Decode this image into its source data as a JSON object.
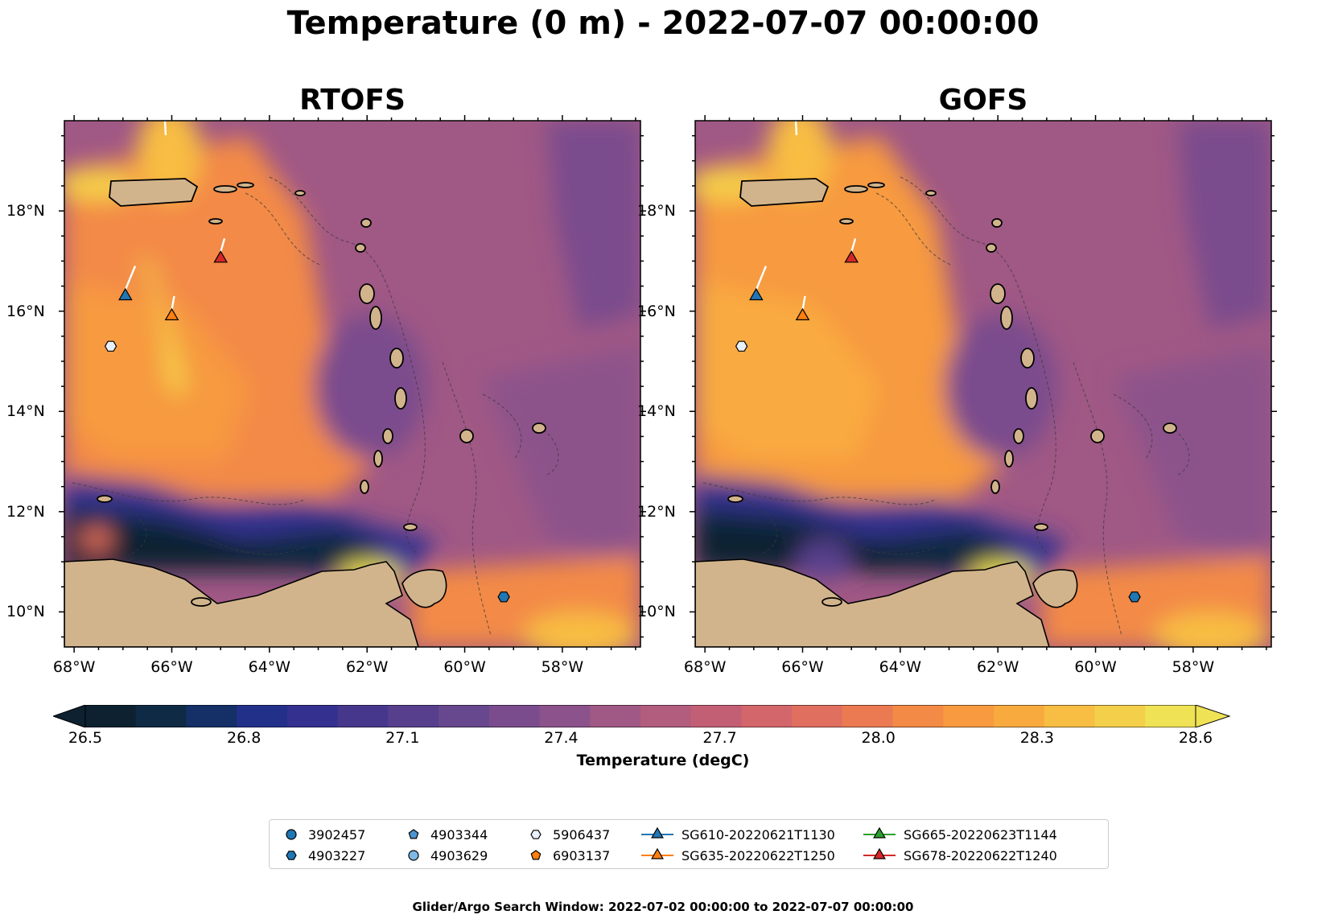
{
  "title": "Temperature (0 m) - 2022-07-07 00:00:00",
  "panels": [
    {
      "title": "RTOFS"
    },
    {
      "title": "GOFS"
    }
  ],
  "axes": {
    "lon_range": [
      -68.2,
      -56.4
    ],
    "lat_range": [
      9.3,
      19.8
    ],
    "lon_ticks": [
      -68,
      -66,
      -64,
      -62,
      -60,
      -58
    ],
    "lon_labels": [
      "68°W",
      "66°W",
      "64°W",
      "62°W",
      "60°W",
      "58°W"
    ],
    "lat_ticks": [
      10,
      12,
      14,
      16,
      18
    ],
    "lat_labels": [
      "10°N",
      "12°N",
      "14°N",
      "16°N",
      "18°N"
    ]
  },
  "colorbar": {
    "label": "Temperature (degC)",
    "vmin": 26.5,
    "vmax": 28.6,
    "ticks": [
      26.5,
      26.8,
      27.1,
      27.4,
      27.7,
      28.0,
      28.3,
      28.6
    ],
    "tick_labels": [
      "26.5",
      "26.8",
      "27.1",
      "27.4",
      "27.7",
      "28.0",
      "28.3",
      "28.6"
    ],
    "colors": [
      "#0d2130",
      "#0f2a45",
      "#152f67",
      "#23308a",
      "#34308f",
      "#46378c",
      "#573f8d",
      "#67478d",
      "#7a4c8d",
      "#8c528b",
      "#a05885",
      "#b25c7e",
      "#c35f75",
      "#d3666b",
      "#e16f5f",
      "#eb7a52",
      "#f38a46",
      "#f79a40",
      "#f9aa3f",
      "#f8bd43",
      "#f4cf4a",
      "#efe255"
    ],
    "extend": "both"
  },
  "land_color": "#d2b48c",
  "legend": {
    "items": [
      {
        "label": "3902457",
        "marker": "circle",
        "color": "#1f77b4"
      },
      {
        "label": "4903227",
        "marker": "hexagon",
        "color": "#1f77b4"
      },
      {
        "label": "4903344",
        "marker": "pentagon",
        "color": "#4e94cf"
      },
      {
        "label": "4903629",
        "marker": "circle",
        "color": "#7fb8e4"
      },
      {
        "label": "5906437",
        "marker": "hexagon",
        "color": "#e8f0fa"
      },
      {
        "label": "6903137",
        "marker": "pentagon",
        "color": "#ff7f0e"
      },
      {
        "label": "SG610-20220621T1130",
        "marker": "triangle",
        "color": "#1f77b4",
        "line": true
      },
      {
        "label": "SG635-20220622T1250",
        "marker": "triangle",
        "color": "#ff7f0e",
        "line": true
      },
      {
        "label": "SG665-20220623T1144",
        "marker": "triangle",
        "color": "#2ca02c",
        "line": true
      },
      {
        "label": "SG678-20220622T1240",
        "marker": "triangle",
        "color": "#d62728",
        "line": true
      }
    ]
  },
  "observations": {
    "gliders": [
      {
        "label": "SG610-20220621T1130",
        "lon": -66.95,
        "lat": 16.3,
        "color": "#1f77b4"
      },
      {
        "label": "SG635-20220622T1250",
        "lon": -66.0,
        "lat": 15.9,
        "color": "#ff7f0e"
      },
      {
        "label": "SG678-20220622T1240",
        "lon": -65.0,
        "lat": 17.05,
        "color": "#d62728"
      }
    ],
    "floats": [
      {
        "label": "5906437",
        "lon": -67.25,
        "lat": 15.3,
        "marker": "hexagon",
        "color": "#e8f0fa"
      },
      {
        "label": "4903227",
        "lon": -59.2,
        "lat": 10.3,
        "marker": "hexagon",
        "color": "#1f77b4"
      }
    ]
  },
  "footer": "Glider/Argo Search Window: 2022-07-02 00:00:00 to 2022-07-07 00:00:00"
}
